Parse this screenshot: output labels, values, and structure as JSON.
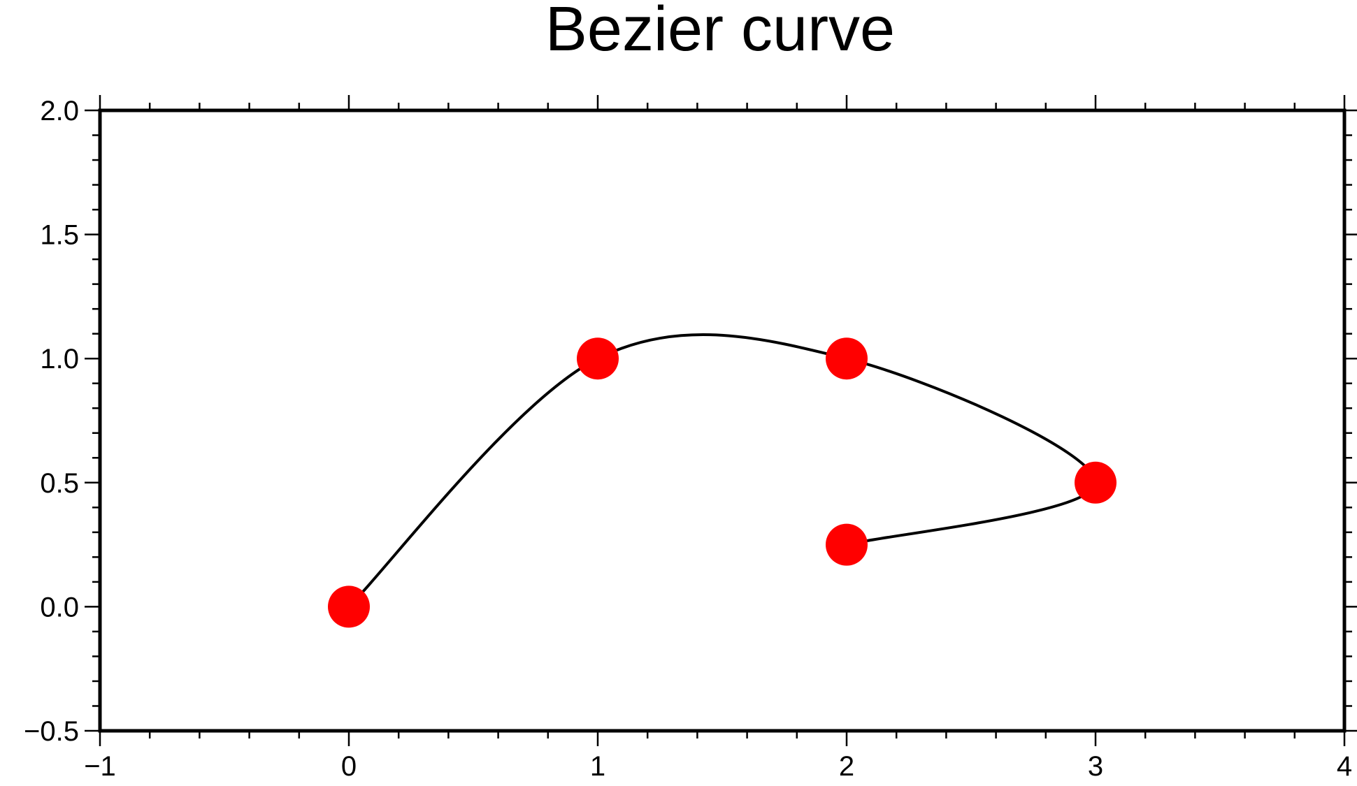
{
  "chart_data": {
    "type": "line",
    "title": "Bezier curve",
    "xlabel": "",
    "ylabel": "",
    "xlim": [
      -1,
      4
    ],
    "ylim": [
      -0.5,
      2.0
    ],
    "x_ticks": [
      -1,
      0,
      1,
      2,
      3,
      4
    ],
    "x_tick_labels": [
      "−1",
      "0",
      "1",
      "2",
      "3",
      "4"
    ],
    "y_ticks": [
      -0.5,
      0.0,
      0.5,
      1.0,
      1.5,
      2.0
    ],
    "y_tick_labels": [
      "−0.5",
      "0.0",
      "0.5",
      "1.0",
      "1.5",
      "2.0"
    ],
    "grid": false,
    "series": [
      {
        "kind": "curve",
        "interpolation": "bezier",
        "x": [
          0,
          1,
          2,
          3,
          2
        ],
        "y": [
          0,
          1,
          1,
          0.5,
          0.25
        ],
        "color": "#000000"
      },
      {
        "kind": "points",
        "x": [
          0,
          1,
          2,
          3,
          2
        ],
        "y": [
          0,
          1,
          1,
          0.5,
          0.25
        ],
        "color": "#ff0000",
        "marker": "circle"
      }
    ]
  }
}
